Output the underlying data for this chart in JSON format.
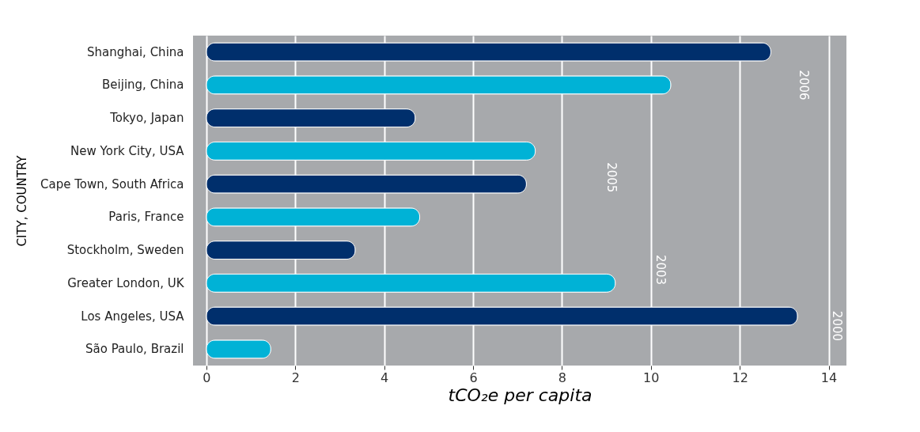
{
  "chart_data": {
    "type": "bar",
    "orientation": "horizontal",
    "xlabel": "tCO₂e per capita",
    "ylabel": "CITY, COUNTRY",
    "categories": [
      "Shanghai, China",
      "Beijing, China",
      "Tokyo, Japan",
      "New York City, USA",
      "Cape Town, South Africa",
      "Paris, France",
      "Stockholm, Sweden",
      "Greater London, UK",
      "Los Angeles, USA",
      "São Paulo, Brazil"
    ],
    "values": [
      12.7,
      10.45,
      4.7,
      7.4,
      7.2,
      4.8,
      3.35,
      9.2,
      13.3,
      1.45
    ],
    "colors": [
      "#002f6c",
      "#00b2d6",
      "#002f6c",
      "#00b2d6",
      "#002f6c",
      "#00b2d6",
      "#002f6c",
      "#00b2d6",
      "#002f6c",
      "#00b2d6"
    ],
    "xlim": [
      -0.3,
      14.4
    ],
    "xticks": [
      0,
      2,
      4,
      6,
      8,
      10,
      12,
      14
    ],
    "grid": "x",
    "annotations": [
      "2006",
      "2005",
      "2003",
      "2000"
    ]
  }
}
